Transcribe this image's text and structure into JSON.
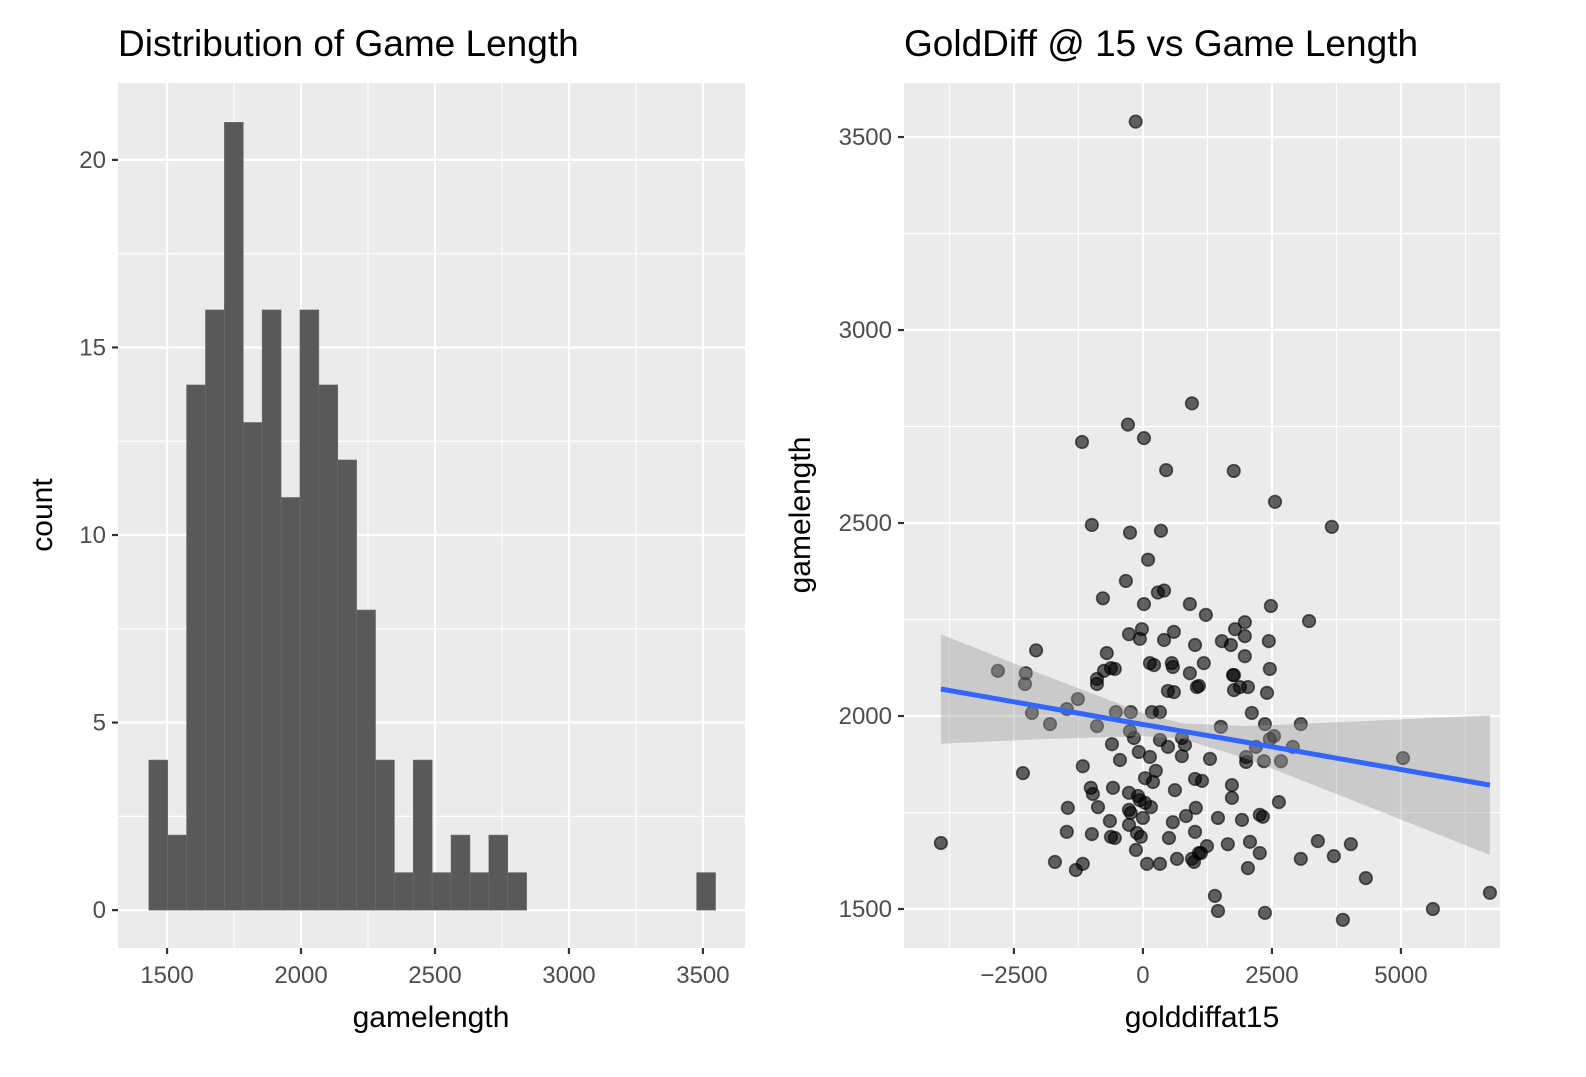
{
  "chart_data": [
    {
      "type": "bar",
      "subtype": "histogram",
      "title": "Distribution of Game Length",
      "xlabel": "gamelength",
      "ylabel": "count",
      "bin_start": 1432,
      "bin_width": 70.5,
      "counts": [
        4,
        2,
        14,
        16,
        21,
        13,
        16,
        11,
        16,
        14,
        12,
        8,
        4,
        1,
        4,
        1,
        2,
        1,
        2,
        1,
        0,
        0,
        0,
        0,
        0,
        0,
        0,
        0,
        0,
        1
      ],
      "xlim": [
        1317,
        3657
      ],
      "ylim": [
        -1.01,
        22.05
      ],
      "xticks": [
        1500,
        2000,
        2500,
        3000,
        3500
      ],
      "xtick_labels": [
        "1500",
        "2000",
        "2500",
        "3000",
        "3500"
      ],
      "yticks": [
        0,
        5,
        10,
        15,
        20
      ],
      "ytick_labels": [
        "0",
        "5",
        "10",
        "15",
        "20"
      ],
      "grid": true,
      "colors": {
        "bar": "#595959",
        "panel": "#ebebeb",
        "grid": "#ffffff"
      }
    },
    {
      "type": "scatter",
      "title": "GoldDiff @ 15 vs Game Length",
      "xlabel": "golddiffat15",
      "ylabel": "gamelength",
      "xlim": [
        -4630,
        6920
      ],
      "ylim": [
        1399,
        3640
      ],
      "xticks": [
        -2500,
        0,
        2500,
        5000
      ],
      "xtick_labels": [
        "−2500",
        "0",
        "2500",
        "5000"
      ],
      "yticks": [
        1500,
        2000,
        2500,
        3000,
        3500
      ],
      "ytick_labels": [
        "1500",
        "2000",
        "2500",
        "3000",
        "3500"
      ],
      "grid": true,
      "points": [
        [
          -140,
          3540
        ],
        [
          950,
          2810
        ],
        [
          -290,
          2755
        ],
        [
          20,
          2720
        ],
        [
          -1180,
          2710
        ],
        [
          450,
          2637
        ],
        [
          1760,
          2635
        ],
        [
          2560,
          2555
        ],
        [
          3660,
          2490
        ],
        [
          -990,
          2495
        ],
        [
          -250,
          2475
        ],
        [
          350,
          2480
        ],
        [
          100,
          2405
        ],
        [
          -330,
          2350
        ],
        [
          -775,
          2305
        ],
        [
          290,
          2320
        ],
        [
          410,
          2325
        ],
        [
          20,
          2290
        ],
        [
          910,
          2290
        ],
        [
          -270,
          2212
        ],
        [
          -20,
          2225
        ],
        [
          -60,
          2200
        ],
        [
          410,
          2197
        ],
        [
          600,
          2218
        ],
        [
          1010,
          2184
        ],
        [
          -2070,
          2170
        ],
        [
          -700,
          2163
        ],
        [
          -2810,
          2117
        ],
        [
          -755,
          2117
        ],
        [
          -620,
          2124
        ],
        [
          -545,
          2122
        ],
        [
          135,
          2137
        ],
        [
          215,
          2132
        ],
        [
          560,
          2137
        ],
        [
          580,
          2127
        ],
        [
          910,
          2111
        ],
        [
          -2270,
          2111
        ],
        [
          -890,
          2096
        ],
        [
          1220,
          2262
        ],
        [
          2480,
          2285
        ],
        [
          3220,
          2246
        ],
        [
          1975,
          2243
        ],
        [
          1785,
          2225
        ],
        [
          1975,
          2207
        ],
        [
          1530,
          2194
        ],
        [
          1705,
          2184
        ],
        [
          2440,
          2194
        ],
        [
          1975,
          2155
        ],
        [
          1180,
          2137
        ],
        [
          1765,
          2106
        ],
        [
          2460,
          2122
        ],
        [
          -2285,
          2083
        ],
        [
          -890,
          2083
        ],
        [
          -1260,
          2044
        ],
        [
          -1475,
          2018
        ],
        [
          -2150,
          2008
        ],
        [
          -1800,
          1979
        ],
        [
          -890,
          1974
        ],
        [
          -525,
          2010
        ],
        [
          -235,
          2010
        ],
        [
          175,
          2010
        ],
        [
          330,
          2010
        ],
        [
          485,
          2065
        ],
        [
          600,
          2062
        ],
        [
          1045,
          2075
        ],
        [
          -250,
          1961
        ],
        [
          -175,
          1943
        ],
        [
          -600,
          1927
        ],
        [
          -80,
          1907
        ],
        [
          135,
          1894
        ],
        [
          330,
          1938
        ],
        [
          485,
          1920
        ],
        [
          755,
          1943
        ],
        [
          815,
          1925
        ],
        [
          755,
          1896
        ],
        [
          -445,
          1886
        ],
        [
          -1165,
          1870
        ],
        [
          -2325,
          1852
        ],
        [
          250,
          1858
        ],
        [
          40,
          1839
        ],
        [
          195,
          1829
        ],
        [
          1010,
          1837
        ],
        [
          620,
          1808
        ],
        [
          -1010,
          1814
        ],
        [
          -970,
          1798
        ],
        [
          -580,
          1814
        ],
        [
          -270,
          1801
        ],
        [
          -95,
          1793
        ],
        [
          -60,
          1782
        ],
        [
          40,
          1775
        ],
        [
          155,
          1764
        ],
        [
          -870,
          1764
        ],
        [
          -1455,
          1762
        ],
        [
          -270,
          1757
        ],
        [
          -235,
          1749
        ],
        [
          0,
          1736
        ],
        [
          1025,
          1762
        ],
        [
          -640,
          1728
        ],
        [
          835,
          1741
        ],
        [
          580,
          1725
        ],
        [
          -270,
          1718
        ],
        [
          -115,
          1697
        ],
        [
          -40,
          1687
        ],
        [
          -620,
          1687
        ],
        [
          -545,
          1684
        ],
        [
          -990,
          1694
        ],
        [
          -1475,
          1700
        ],
        [
          505,
          1684
        ],
        [
          1010,
          1700
        ],
        [
          -3915,
          1671
        ],
        [
          -135,
          1653
        ],
        [
          660,
          1630
        ],
        [
          950,
          1630
        ],
        [
          990,
          1622
        ],
        [
          1085,
          1645
        ],
        [
          -1705,
          1622
        ],
        [
          -1165,
          1617
        ],
        [
          -1300,
          1601
        ],
        [
          80,
          1617
        ],
        [
          330,
          1617
        ],
        [
          1085,
          2078
        ],
        [
          1745,
          2106
        ],
        [
          1880,
          2075
        ],
        [
          2035,
          2075
        ],
        [
          1765,
          2067
        ],
        [
          2405,
          2060
        ],
        [
          2110,
          2008
        ],
        [
          1510,
          1972
        ],
        [
          2365,
          1979
        ],
        [
          3060,
          1979
        ],
        [
          2540,
          1948
        ],
        [
          2460,
          1940
        ],
        [
          2190,
          1920
        ],
        [
          2905,
          1920
        ],
        [
          2000,
          1894
        ],
        [
          2000,
          1881
        ],
        [
          2345,
          1883
        ],
        [
          2675,
          1883
        ],
        [
          1300,
          1889
        ],
        [
          5040,
          1891
        ],
        [
          1145,
          1832
        ],
        [
          1725,
          1821
        ],
        [
          1725,
          1788
        ],
        [
          2635,
          1777
        ],
        [
          1455,
          1736
        ],
        [
          1920,
          1731
        ],
        [
          2265,
          1744
        ],
        [
          2325,
          1739
        ],
        [
          1240,
          1663
        ],
        [
          1125,
          1645
        ],
        [
          1645,
          1668
        ],
        [
          2075,
          1674
        ],
        [
          2265,
          1645
        ],
        [
          3390,
          1676
        ],
        [
          4030,
          1668
        ],
        [
          3700,
          1637
        ],
        [
          3060,
          1630
        ],
        [
          2035,
          1606
        ],
        [
          4320,
          1580
        ],
        [
          1395,
          1534
        ],
        [
          6725,
          1542
        ],
        [
          1455,
          1495
        ],
        [
          2365,
          1490
        ],
        [
          5620,
          1500
        ],
        [
          3875,
          1472
        ]
      ],
      "smooth": {
        "method": "lm",
        "x": [
          -3915,
          -2000,
          0,
          755,
          2000,
          4000,
          6725
        ],
        "fit": [
          2070,
          2025,
          1978,
          1961,
          1932,
          1885,
          1821
        ],
        "lower": [
          1928,
          1940,
          1948,
          1941,
          1890,
          1785,
          1640
        ],
        "upper": [
          2212,
          2110,
          2008,
          1981,
          1974,
          1985,
          2002
        ]
      },
      "colors": {
        "point": "#000000",
        "line": "#3366ff",
        "band": "#999999",
        "panel": "#ebebeb",
        "grid": "#ffffff"
      }
    }
  ]
}
